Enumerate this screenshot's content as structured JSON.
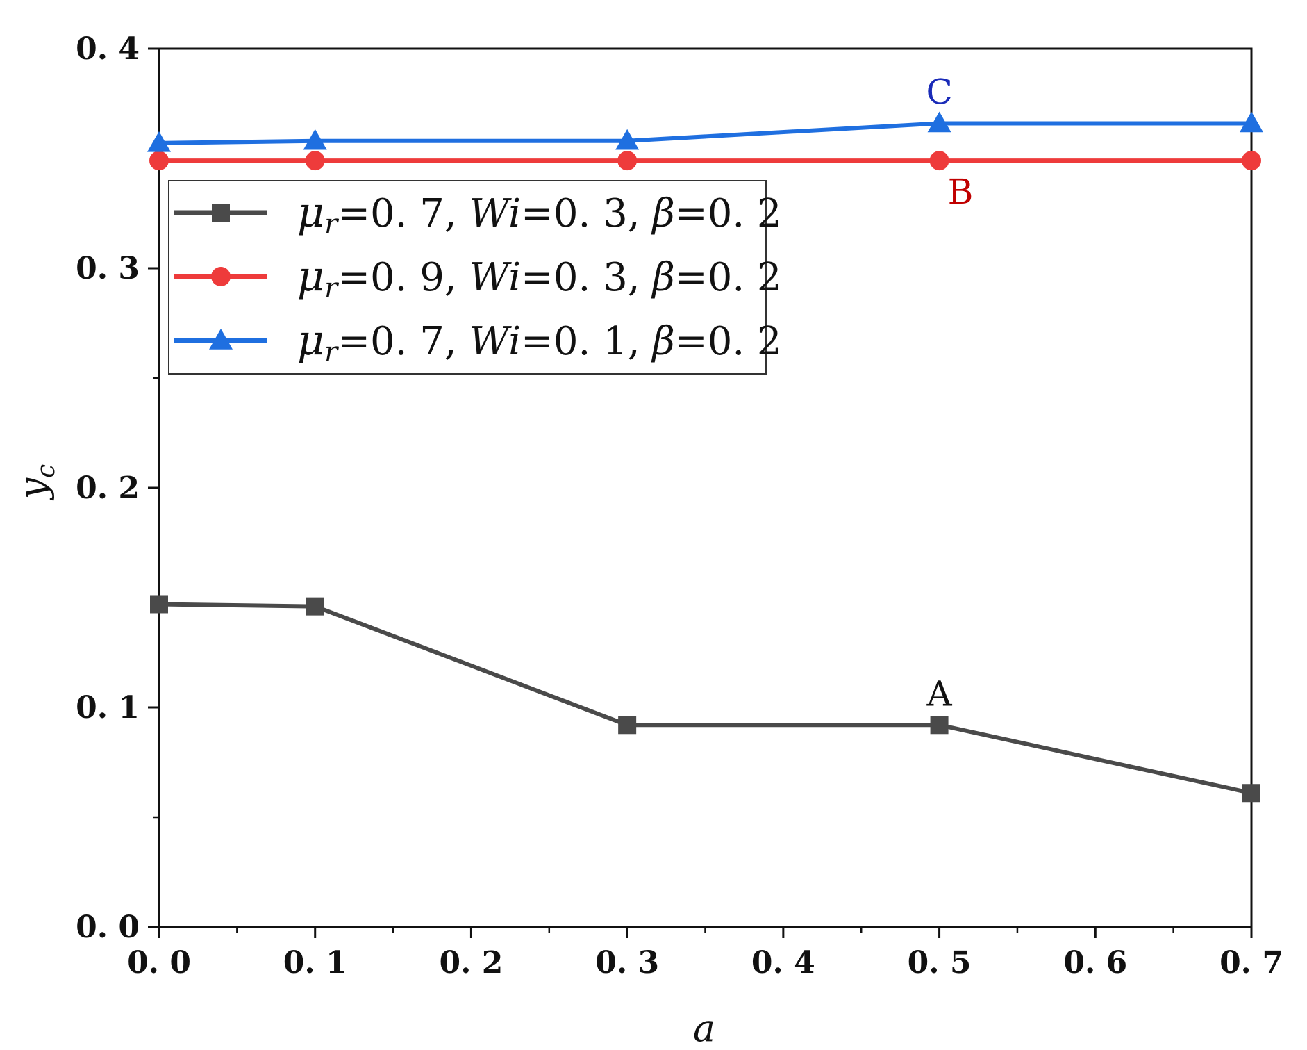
{
  "chart_data": {
    "type": "line",
    "title": "",
    "xlabel": "a",
    "ylabel": "y",
    "ylabel_sub": "c",
    "xlim": [
      0.0,
      0.7
    ],
    "ylim": [
      0.0,
      0.4
    ],
    "x_ticks": [
      0.0,
      0.1,
      0.2,
      0.3,
      0.4,
      0.5,
      0.6,
      0.7
    ],
    "x_tick_labels": [
      "0. 0",
      "0. 1",
      "0. 2",
      "0. 3",
      "0. 4",
      "0. 5",
      "0. 6",
      "0. 7"
    ],
    "y_ticks": [
      0.0,
      0.1,
      0.2,
      0.3,
      0.4
    ],
    "y_tick_labels": [
      "0. 0",
      "0. 1",
      "0. 2",
      "0. 3",
      "0. 4"
    ],
    "legend_position": "upper-left",
    "series": [
      {
        "name": "μr=0. 7, Wi=0. 3,  β=0. 2",
        "legend": {
          "mu": "μ",
          "mu_sub": "r",
          "mu_val": "=0. 7, ",
          "wi": "Wi",
          "wi_val": "=0. 3,  ",
          "beta": "β",
          "beta_val": "=0. 2"
        },
        "color": "#4a4a4a",
        "marker": "square",
        "x": [
          0.0,
          0.1,
          0.3,
          0.5,
          0.7
        ],
        "values": [
          0.147,
          0.146,
          0.092,
          0.092,
          0.061
        ]
      },
      {
        "name": "μr=0. 9, Wi=0. 3,  β=0. 2",
        "legend": {
          "mu": "μ",
          "mu_sub": "r",
          "mu_val": "=0. 9, ",
          "wi": "Wi",
          "wi_val": "=0. 3,  ",
          "beta": "β",
          "beta_val": "=0. 2"
        },
        "color": "#ee3b3b",
        "marker": "circle",
        "x": [
          0.0,
          0.1,
          0.3,
          0.5,
          0.7
        ],
        "values": [
          0.349,
          0.349,
          0.349,
          0.349,
          0.349
        ]
      },
      {
        "name": "μr=0. 7, Wi=0. 1,  β=0. 2",
        "legend": {
          "mu": "μ",
          "mu_sub": "r",
          "mu_val": "=0. 7, ",
          "wi": "Wi",
          "wi_val": "=0. 1,  ",
          "beta": "β",
          "beta_val": "=0. 2"
        },
        "color": "#1f6fe0",
        "marker": "triangle",
        "x": [
          0.0,
          0.1,
          0.3,
          0.5,
          0.7
        ],
        "values": [
          0.357,
          0.358,
          0.358,
          0.366,
          0.366
        ]
      }
    ],
    "annotations": [
      {
        "text": "A",
        "series": 0,
        "x": 0.5,
        "value": 0.092,
        "color": "#111111",
        "placement": "above"
      },
      {
        "text": "B",
        "series": 1,
        "x": 0.5,
        "value": 0.349,
        "color": "#c00000",
        "placement": "below-right"
      },
      {
        "text": "C",
        "series": 2,
        "x": 0.5,
        "value": 0.366,
        "color": "#1a2bb8",
        "placement": "above"
      }
    ]
  }
}
